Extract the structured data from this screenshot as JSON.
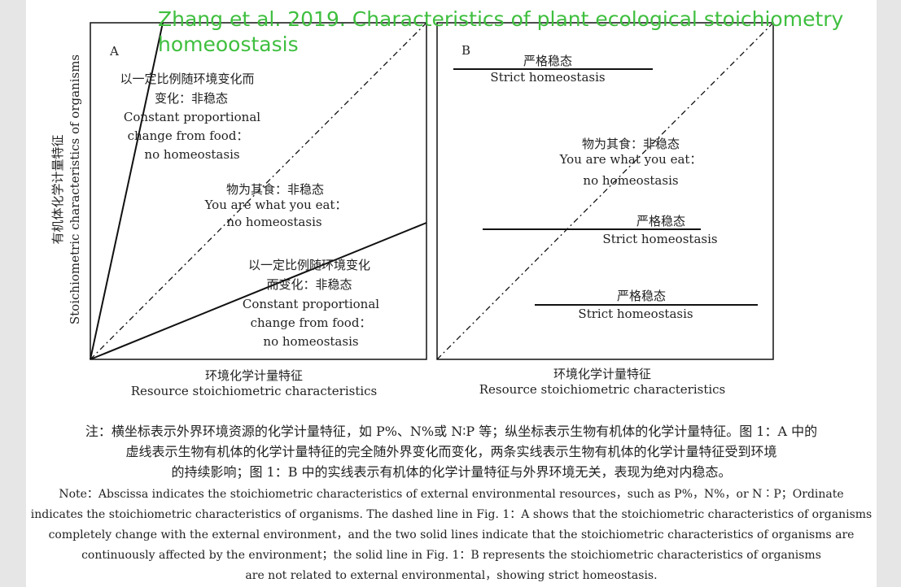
{
  "overlay": {
    "title_line1": "Zhang et al. 2019. Characteristics of plant ecological stoichiometry",
    "title_line2": "homeoostasis",
    "color": "#3fbf3f"
  },
  "y_axis": {
    "label_cn": "有机体化学计量特征",
    "label_en": "Stoichiometric characteristics of organisms"
  },
  "panel_a": {
    "letter": "A",
    "upper_line": {
      "cn_1": "以一定比例随环境变化而",
      "cn_2": "变化：非稳态",
      "en_1": "Constant  proportional",
      "en_2": "change from food：",
      "en_3": "no homeostasis"
    },
    "diagonal": {
      "cn": "物为其食：非稳态",
      "en_1": "You are  what you eat：",
      "en_2": "no homeostasis"
    },
    "lower_line": {
      "cn_1": "以一定比例随环境变化",
      "cn_2": "而变化：非稳态",
      "en_1": "Constant  proportional",
      "en_2": "change from  food：",
      "en_3": "no homeostasis"
    },
    "x_label_cn": "环境化学计量特征",
    "x_label_en": "Resource  stoichiometric characteristics"
  },
  "panel_b": {
    "letter": "B",
    "top_line": {
      "cn": "严格稳态",
      "en": "Strict homeostasis"
    },
    "diagonal": {
      "cn": "物为其食：非稳态",
      "en_1": "You  are  what you eat：",
      "en_2": "no  homeostasis"
    },
    "middle_line": {
      "cn": "严格稳态",
      "en": "Strict homeostasis"
    },
    "bottom_line": {
      "cn": "严格稳态",
      "en": "Strict  homeostasis"
    },
    "x_label_cn": "环境化学计量特征",
    "x_label_en": "Resource  stoichiometric characteristics"
  },
  "note": {
    "zh_1": "注：横坐标表示外界环境资源的化学计量特征，如 P%、N%或 N∶P 等；纵坐标表示生物有机体的化学计量特征。图 1：A 中的",
    "zh_2": "虚线表示生物有机体的化学计量特征的完全随外界变化而变化，两条实线表示生物有机体的化学计量特征受到环境",
    "zh_3": "的持续影响；图 1：B 中的实线表示有机体的化学计量特征与外界环境无关，表现为绝对内稳态。",
    "en_1": "Note：Abscissa indicates the stoichiometric characteristics of external environmental resources，such as P%，N%，or N∶P；Ordinate",
    "en_2": "indicates the stoichiometric characteristics of organisms. The dashed line in Fig. 1：A shows that the stoichiometric characteristics of organisms",
    "en_3": "completely change with the external environment，and the two solid lines indicate that the stoichiometric characteristics of organisms are",
    "en_4": "continuously affected by the environment；the solid line in Fig. 1：B represents the stoichiometric characteristics of organisms",
    "en_5": "are not related to external environmental，showing strict homeostasis."
  }
}
